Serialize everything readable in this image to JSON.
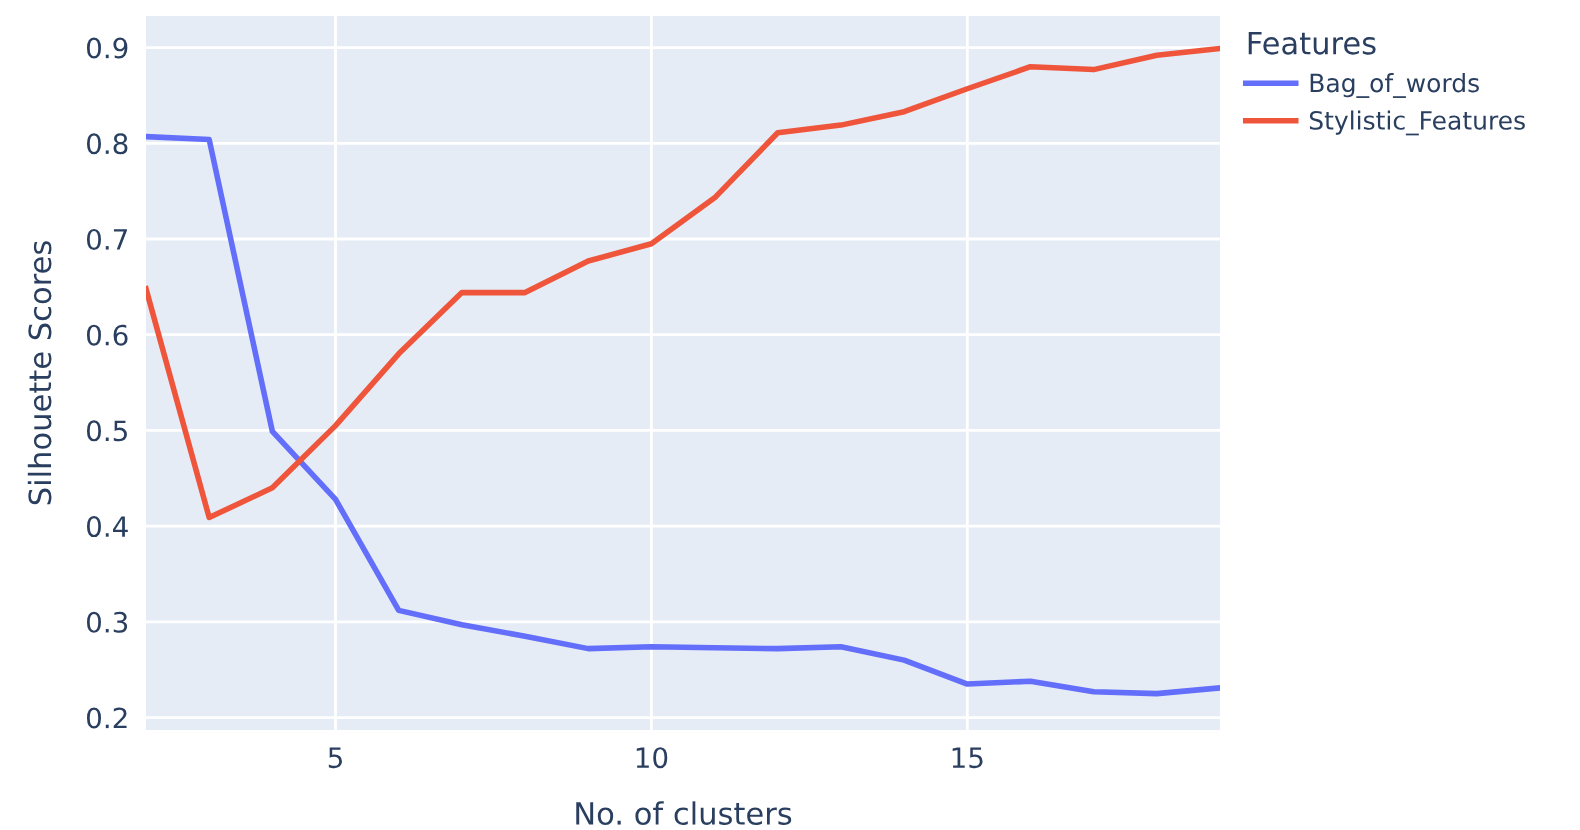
{
  "chart_data": {
    "type": "line",
    "xlabel": "No. of clusters",
    "ylabel": "Silhouette Scores",
    "legend_title": "Features",
    "x": [
      2,
      3,
      4,
      5,
      6,
      7,
      8,
      9,
      10,
      11,
      12,
      13,
      14,
      15,
      16,
      17,
      18,
      19
    ],
    "series": [
      {
        "name": "Bag_of_words",
        "color": "#636efa",
        "values": [
          0.807,
          0.804,
          0.499,
          0.428,
          0.312,
          0.297,
          0.285,
          0.272,
          0.274,
          0.273,
          0.272,
          0.274,
          0.26,
          0.235,
          0.238,
          0.227,
          0.225,
          0.231
        ]
      },
      {
        "name": "Stylistic_Features",
        "color": "#ef553b",
        "values": [
          0.648,
          0.409,
          0.44,
          0.505,
          0.58,
          0.644,
          0.644,
          0.677,
          0.695,
          0.743,
          0.811,
          0.819,
          0.833,
          0.857,
          0.88,
          0.877,
          0.892,
          0.899
        ]
      }
    ],
    "xlim": [
      2,
      19
    ],
    "xticks": [
      5,
      10,
      15
    ],
    "ylim": [
      0.187,
      0.933
    ],
    "yticks": [
      0.2,
      0.3,
      0.4,
      0.5,
      0.6,
      0.7,
      0.8,
      0.9
    ],
    "grid": true,
    "legend": "top right",
    "marker": "none",
    "line_style": "solid"
  }
}
